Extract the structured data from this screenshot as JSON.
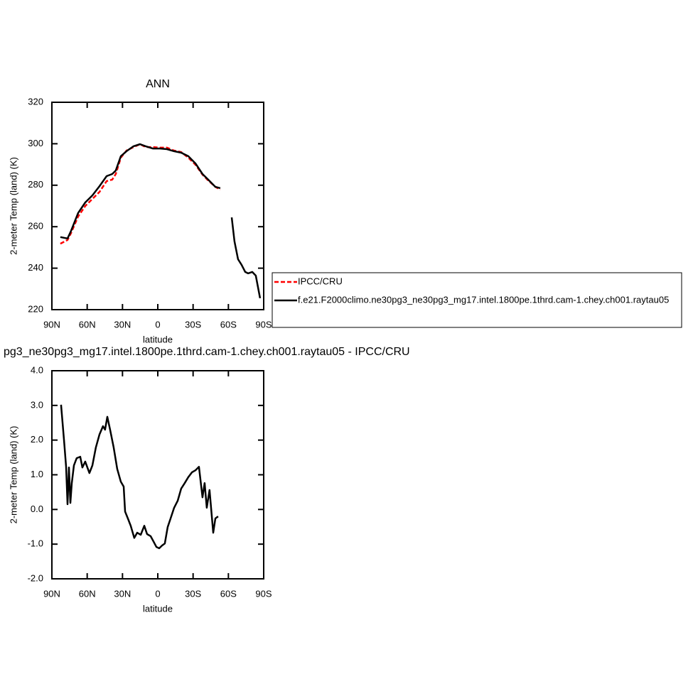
{
  "chart_data": [
    {
      "type": "line",
      "title": "ANN",
      "xlabel": "latitude",
      "ylabel": "2-meter Temp (land) (K)",
      "x": [
        82.8,
        76.7,
        73.7,
        67.7,
        61.6,
        55.6,
        49.5,
        43.5,
        38.7,
        35.7,
        31.4,
        26.6,
        20.6,
        15.1,
        10.3,
        4.3,
        -1.8,
        -7.8,
        -13.8,
        -19.9,
        -25.9,
        -32.0,
        -38.0,
        -42.8,
        -48.9,
        -53.1,
        -58.0,
        -62.8,
        -65.2,
        -68.2,
        -71.2,
        -74.3,
        -76.7,
        -80.3,
        -83.3,
        -86.9
      ],
      "xlim": [
        90,
        -90
      ],
      "xticks": [
        {
          "value": 90,
          "label": "90N"
        },
        {
          "value": 60,
          "label": "60N"
        },
        {
          "value": 30,
          "label": "30N"
        },
        0,
        {
          "value": -30,
          "label": "30S"
        },
        {
          "value": -60,
          "label": "60S"
        },
        {
          "value": -90,
          "label": "90S"
        }
      ],
      "ylim": [
        220,
        320
      ],
      "yticks": [
        220,
        240,
        260,
        280,
        300,
        320
      ],
      "series": [
        {
          "name": "IPCC/CRU",
          "color": "#ff0000",
          "dashed": true,
          "values": [
            251.8,
            253.6,
            257.0,
            264.9,
            270.0,
            273.4,
            276.8,
            282.0,
            282.7,
            285.4,
            293.3,
            296.7,
            298.4,
            299.8,
            298.4,
            298.4,
            298.1,
            298.1,
            296.7,
            296.0,
            293.3,
            289.9,
            285.1,
            282.3,
            279.2,
            277.9,
            null,
            null,
            null,
            null,
            null,
            null,
            null,
            null,
            null,
            null
          ]
        },
        {
          "name": "f.e21.F2000climo.ne30pg3_ne30pg3_mg17.intel.1800pe.1thrd.cam-1.chey.ch001.raytau05",
          "color": "#000000",
          "dashed": false,
          "values": [
            255.0,
            254.3,
            258.0,
            266.6,
            271.7,
            275.1,
            279.6,
            284.4,
            285.4,
            287.1,
            294.0,
            296.4,
            298.8,
            299.8,
            298.8,
            297.7,
            297.7,
            297.4,
            296.4,
            295.7,
            294.0,
            290.5,
            285.4,
            282.7,
            279.2,
            278.6,
            null,
            264.5,
            252.9,
            244.3,
            241.6,
            238.2,
            237.5,
            238.2,
            236.4,
            225.5
          ]
        }
      ]
    },
    {
      "type": "line",
      "title": "pg3_ne30pg3_mg17.intel.1800pe.1thrd.cam-1.chey.ch001.raytau05 - IPCC/CRU",
      "xlabel": "latitude",
      "ylabel": "2-meter Temp (land) (K)",
      "x": [
        82.2,
        79.7,
        77.9,
        76.7,
        75.5,
        74.3,
        73.1,
        71.3,
        68.9,
        65.9,
        64.1,
        61.7,
        58.1,
        55.6,
        52.6,
        49.6,
        46.6,
        44.8,
        42.9,
        40.5,
        37.5,
        34.5,
        31.4,
        29.0,
        27.8,
        25.4,
        23.0,
        20.0,
        17.5,
        14.5,
        11.5,
        9.1,
        6.1,
        3.7,
        1.2,
        -1.2,
        -3.6,
        -6.0,
        -8.4,
        -10.9,
        -13.9,
        -16.9,
        -19.9,
        -22.9,
        -25.9,
        -29.0,
        -32.0,
        -35.0,
        -38.0,
        -39.8,
        -41.6,
        -44.0,
        -47.1,
        -48.9,
        -51.3
      ],
      "xlim": [
        90,
        -90
      ],
      "xticks": [
        {
          "value": 90,
          "label": "90N"
        },
        {
          "value": 60,
          "label": "60N"
        },
        {
          "value": 30,
          "label": "30N"
        },
        0,
        {
          "value": -30,
          "label": "30S"
        },
        {
          "value": -60,
          "label": "60S"
        },
        {
          "value": -90,
          "label": "90S"
        }
      ],
      "ylim": [
        -2,
        4
      ],
      "yticks": [
        {
          "value": -2,
          "label": "-2.0"
        },
        {
          "value": -1,
          "label": "-1.0"
        },
        {
          "value": 0,
          "label": "0.0"
        },
        {
          "value": 1,
          "label": "1.0"
        },
        {
          "value": 2,
          "label": "2.0"
        },
        {
          "value": 3,
          "label": "3.0"
        },
        {
          "value": 4,
          "label": "4.0"
        }
      ],
      "series": [
        {
          "color": "#000000",
          "dashed": false,
          "values": [
            3.02,
            1.99,
            1.23,
            0.15,
            1.21,
            0.19,
            0.76,
            1.27,
            1.48,
            1.52,
            1.21,
            1.38,
            1.05,
            1.27,
            1.79,
            2.16,
            2.4,
            2.3,
            2.67,
            2.3,
            1.79,
            1.17,
            0.8,
            0.66,
            -0.06,
            -0.26,
            -0.47,
            -0.82,
            -0.67,
            -0.73,
            -0.47,
            -0.71,
            -0.77,
            -0.92,
            -1.08,
            -1.12,
            -1.04,
            -0.98,
            -0.51,
            -0.26,
            0.05,
            0.25,
            0.6,
            0.76,
            0.93,
            1.07,
            1.13,
            1.23,
            0.35,
            0.76,
            0.05,
            0.56,
            -0.67,
            -0.26,
            -0.2
          ]
        }
      ]
    }
  ]
}
